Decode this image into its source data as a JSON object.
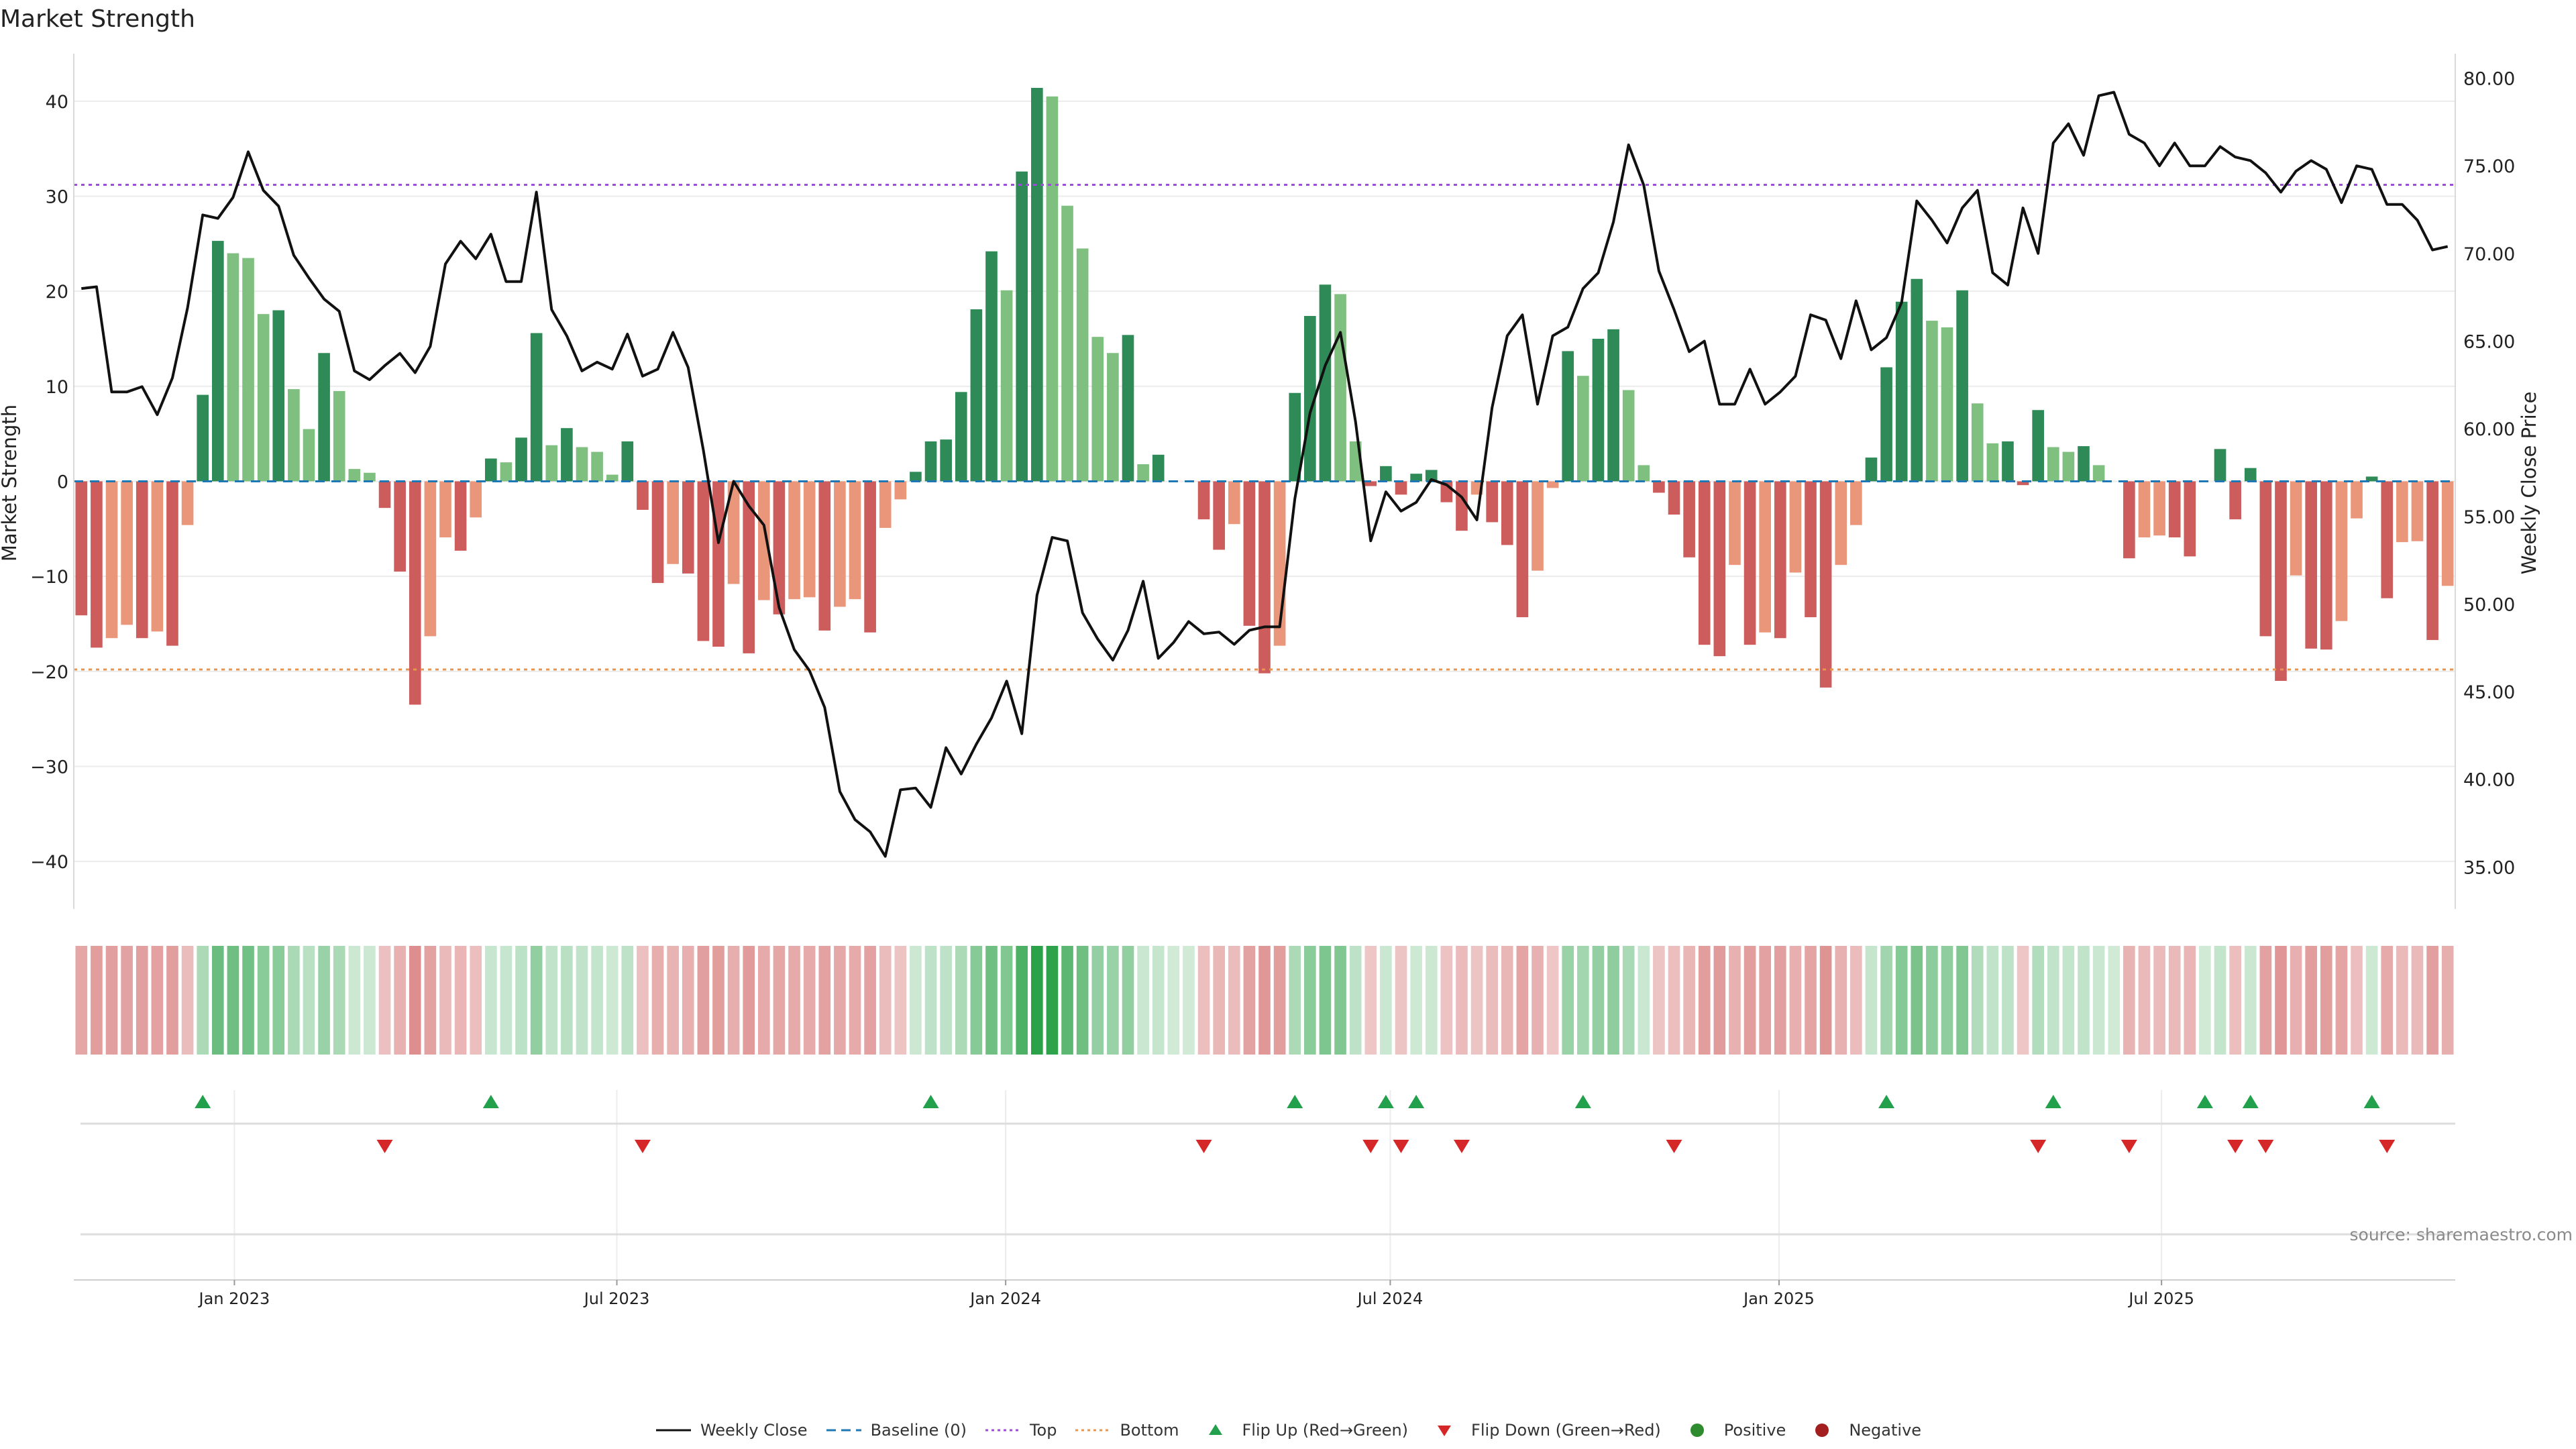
{
  "chart_data": {
    "type": "bar",
    "title": "Market Strength",
    "ylabel": "Market Strength",
    "y2label": "Weekly Close Price",
    "ylim": [
      -45,
      45
    ],
    "y2lim": [
      32.6,
      81.4
    ],
    "y_ticks": [
      40,
      30,
      20,
      10,
      0,
      -10,
      -20,
      -30,
      -40
    ],
    "y_tick_labels": [
      "40",
      "30",
      "20",
      "10",
      "0",
      "−10",
      "−20",
      "−30",
      "−40"
    ],
    "y2_ticks": [
      80,
      75,
      70,
      65,
      60,
      55,
      50,
      45,
      40,
      35
    ],
    "y2_tick_labels": [
      "80.00",
      "75.00",
      "70.00",
      "65.00",
      "60.00",
      "55.00",
      "50.00",
      "45.00",
      "40.00",
      "35.00"
    ],
    "x_start": "2022-10-17",
    "x_end": "2025-11-17",
    "x_ticks": [
      "2023-01-01",
      "2023-07-01",
      "2024-01-01",
      "2024-07-01",
      "2025-01-01",
      "2025-07-01"
    ],
    "x_tick_labels": [
      "Jan 2023",
      "Jul 2023",
      "Jan 2024",
      "Jul 2024",
      "Jan 2025",
      "Jul 2025"
    ],
    "top_line": 31.2,
    "bottom_line": -19.8,
    "grid": true,
    "series": [
      {
        "name": "Market Strength",
        "type": "bar",
        "values": [
          -14.1,
          -17.5,
          -16.5,
          -15.1,
          -16.5,
          -15.8,
          -17.3,
          -4.6,
          9.1,
          25.3,
          24.0,
          23.5,
          17.6,
          18.0,
          9.7,
          5.5,
          13.5,
          9.5,
          1.3,
          0.9,
          -2.8,
          -9.5,
          -23.5,
          -16.3,
          -5.9,
          -7.3,
          -3.8,
          2.4,
          2.0,
          4.6,
          15.6,
          3.8,
          5.6,
          3.6,
          3.1,
          0.7,
          4.2,
          -3.0,
          -10.7,
          -8.7,
          -9.7,
          -16.8,
          -17.4,
          -10.8,
          -18.1,
          -12.5,
          -14.0,
          -12.4,
          -12.2,
          -15.7,
          -13.2,
          -12.4,
          -15.9,
          -4.9,
          -1.9,
          1.0,
          4.2,
          4.4,
          9.4,
          18.1,
          24.2,
          20.1,
          32.6,
          41.4,
          40.5,
          29.0,
          24.5,
          15.2,
          13.5,
          15.4,
          1.8,
          2.8,
          0.0,
          0.0,
          -4.0,
          -7.2,
          -4.5,
          -15.2,
          -20.2,
          -17.3,
          9.3,
          17.4,
          20.7,
          19.7,
          4.2,
          -0.5,
          1.6,
          -1.4,
          0.8,
          1.2,
          -2.2,
          -5.2,
          -1.4,
          -4.3,
          -6.7,
          -14.3,
          -9.4,
          -0.7,
          13.7,
          11.1,
          15.0,
          16.0,
          9.6,
          1.7,
          -1.2,
          -3.5,
          -8.0,
          -17.2,
          -18.4,
          -8.8,
          -17.2,
          -15.9,
          -16.5,
          -9.6,
          -14.3,
          -21.7,
          -8.8,
          -4.6,
          2.5,
          12.0,
          18.9,
          21.3,
          16.9,
          16.2,
          20.1,
          8.2,
          4.0,
          4.2,
          -0.4,
          7.5,
          3.6,
          3.1,
          3.7,
          1.7,
          0.0,
          -8.1,
          -5.9,
          -5.7,
          -5.9,
          -7.9,
          0.0,
          3.4,
          -4.0,
          1.4,
          -16.3,
          -21.0,
          -9.9,
          -17.6,
          -17.7,
          -14.7,
          -3.9,
          0.5,
          -12.3,
          -6.4,
          -6.3,
          -16.7,
          -11.0
        ]
      },
      {
        "name": "Weekly Close",
        "type": "line",
        "values": [
          68.0,
          68.1,
          62.1,
          62.1,
          62.4,
          60.8,
          62.9,
          66.9,
          72.2,
          72.0,
          73.2,
          75.8,
          73.6,
          72.7,
          69.9,
          68.6,
          67.4,
          66.7,
          63.3,
          62.8,
          63.6,
          64.3,
          63.2,
          64.7,
          69.4,
          70.7,
          69.7,
          71.1,
          68.4,
          68.4,
          73.5,
          66.8,
          65.3,
          63.3,
          63.8,
          63.4,
          65.4,
          63.0,
          63.4,
          65.5,
          63.5,
          58.8,
          53.5,
          57.0,
          55.6,
          54.5,
          49.8,
          47.4,
          46.2,
          44.1,
          39.3,
          37.7,
          37.0,
          35.6,
          39.4,
          39.5,
          38.4,
          41.8,
          40.3,
          42.0,
          43.5,
          45.6,
          42.6,
          50.5,
          53.8,
          53.6,
          49.5,
          48.0,
          46.8,
          48.5,
          51.3,
          46.9,
          47.8,
          49.0,
          48.3,
          48.4,
          47.7,
          48.5,
          48.7,
          48.7,
          56.0,
          60.9,
          63.6,
          65.5,
          60.4,
          53.6,
          56.4,
          55.3,
          55.8,
          57.1,
          56.8,
          56.1,
          54.8,
          61.2,
          65.3,
          66.5,
          61.4,
          65.3,
          65.8,
          68.0,
          68.9,
          71.8,
          76.2,
          73.9,
          69.0,
          66.8,
          64.4,
          65.0,
          61.4,
          61.4,
          63.4,
          61.4,
          62.1,
          63.0,
          66.5,
          66.2,
          64.0,
          67.3,
          64.5,
          65.2,
          67.2,
          73.0,
          71.9,
          70.6,
          72.6,
          73.6,
          68.9,
          68.2,
          72.6,
          70.0,
          76.3,
          77.4,
          75.6,
          79.0,
          79.2,
          76.8,
          76.3,
          75.0,
          76.3,
          75.0,
          75.0,
          76.1,
          75.5,
          75.3,
          74.6,
          73.5,
          74.7,
          75.3,
          74.8,
          72.9,
          75.0,
          74.8,
          72.8,
          72.8,
          71.9,
          70.2,
          70.4
        ]
      }
    ],
    "flip_up_index": [
      8,
      27,
      56,
      80,
      86,
      88,
      99,
      119,
      130,
      140,
      143,
      151
    ],
    "flip_down_index": [
      20,
      37,
      74,
      85,
      87,
      91,
      105,
      129,
      135,
      142,
      144,
      152
    ],
    "source": "source: sharemaestro.com",
    "legend": [
      {
        "label": "Weekly Close",
        "kind": "line",
        "color": "#111111"
      },
      {
        "label": "Baseline (0)",
        "kind": "dash",
        "color": "#1f77b4"
      },
      {
        "label": "Top",
        "kind": "dot",
        "color": "#9a4fd6"
      },
      {
        "label": "Bottom",
        "kind": "dot",
        "color": "#e8954f"
      },
      {
        "label": "Flip Up (Red→Green)",
        "kind": "tri-up",
        "color": "#22a04b"
      },
      {
        "label": "Flip Down (Green→Red)",
        "kind": "tri-down",
        "color": "#d62728"
      },
      {
        "label": "Positive",
        "kind": "dot-marker",
        "color": "#2e8b2e"
      },
      {
        "label": "Negative",
        "kind": "dot-marker",
        "color": "#a31f1f"
      }
    ],
    "colors": {
      "pos_dark": "#2e8b57",
      "pos_light": "#7fbf7f",
      "neg_dark": "#cd5c5c",
      "neg_light": "#e9967a",
      "price_line": "#111111",
      "baseline": "#1f77b4",
      "top": "#9a4fd6",
      "bottom": "#e8954f",
      "flip_up": "#22a04b",
      "flip_down": "#d62728"
    }
  }
}
